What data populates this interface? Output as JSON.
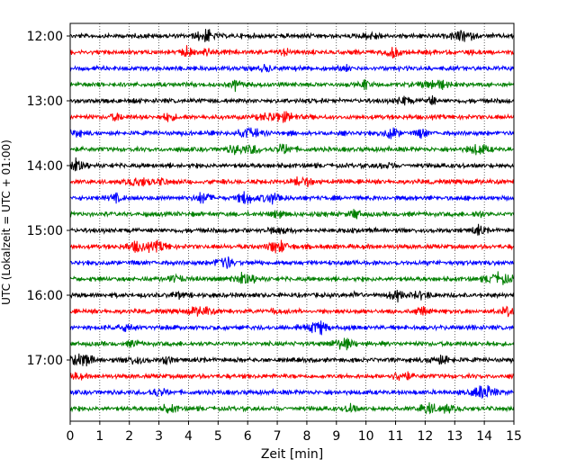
{
  "chart_data": {
    "type": "line",
    "title": "",
    "xlabel": "Zeit  [min]",
    "ylabel": "UTC (Lokalzeit = UTC + 01:00)",
    "xlim": [
      0,
      15
    ],
    "x_ticks": [
      "0",
      "1",
      "2",
      "3",
      "4",
      "5",
      "6",
      "7",
      "8",
      "9",
      "10",
      "11",
      "12",
      "13",
      "14",
      "15"
    ],
    "y_ticks": [
      {
        "label": "12:00",
        "row": 0
      },
      {
        "label": "13:00",
        "row": 4
      },
      {
        "label": "14:00",
        "row": 8
      },
      {
        "label": "15:00",
        "row": 12
      },
      {
        "label": "16:00",
        "row": 16
      },
      {
        "label": "17:00",
        "row": 20
      }
    ],
    "row_interval_minutes": 15,
    "row_count": 24,
    "grid": {
      "vertical": true,
      "horizontal": false,
      "style": "dotted"
    },
    "series_colors": [
      "#000000",
      "#ff0000",
      "#0000ff",
      "#007f00"
    ]
  }
}
